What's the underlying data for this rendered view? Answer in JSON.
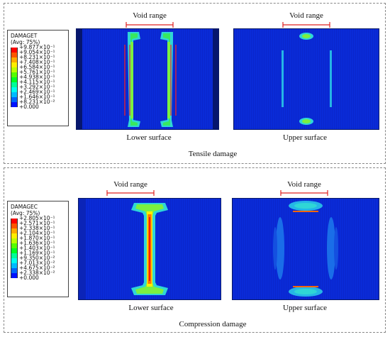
{
  "tensile": {
    "legend_title": "DAMAGET\n(Avg: 75%)",
    "legend_values": [
      "+9.877×10⁻¹",
      "+9.054×10⁻¹",
      "+8.231×10⁻¹",
      "+7.408×10⁻¹",
      "+6.584×10⁻¹",
      "+5.761×10⁻¹",
      "+4.938×10⁻¹",
      "+4.115×10⁻¹",
      "+3.292×10⁻¹",
      "+2.469×10⁻¹",
      "+1.646×10⁻¹",
      "+8.231×10⁻²",
      "+0.000"
    ],
    "void_label": "Void range",
    "lower_caption": "Lower surface",
    "upper_caption": "Upper surface",
    "title": "Tensile damage"
  },
  "compression": {
    "legend_title": "DAMAGEC\n(Avg: 75%)",
    "legend_values": [
      "+2.805×10⁻¹",
      "+2.571×10⁻¹",
      "+2.338×10⁻¹",
      "+2.104×10⁻¹",
      "+1.870×10⁻¹",
      "+1.636×10⁻¹",
      "+1.403×10⁻¹",
      "+1.169×10⁻¹",
      "+9.350×10⁻²",
      "+7.013×10⁻²",
      "+4.675×10⁻²",
      "+2.338×10⁻²",
      "+0.000"
    ],
    "void_label": "Void range",
    "lower_caption": "Lower surface",
    "upper_caption": "Upper surface",
    "title": "Compression damage"
  },
  "colors": {
    "scale": [
      "#ff0000",
      "#ff5500",
      "#ffaa00",
      "#ffee00",
      "#bbff00",
      "#55ff00",
      "#00ff22",
      "#00ff99",
      "#00ffee",
      "#00bbff",
      "#0066ff",
      "#0011ff"
    ],
    "background": "#0a2bd8",
    "bracket": "#e02020"
  }
}
